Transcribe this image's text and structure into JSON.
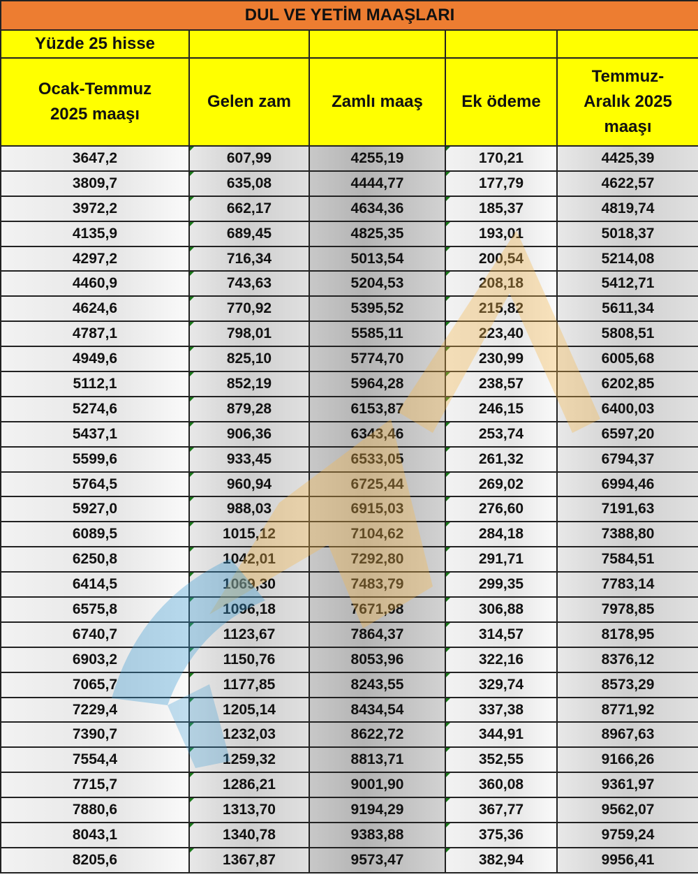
{
  "title": "DUL VE YETİM MAAŞLARI",
  "subtitle": "Yüzde 25 hisse",
  "headers": [
    "Ocak-Temmuz 2025 maaşı",
    "Gelen zam",
    "Zamlı maaş",
    "Ek ödeme",
    "Temmuz-Aralık 2025 maaşı"
  ],
  "colors": {
    "title_bg": "#ed7d31",
    "header_bg": "#ffff00"
  },
  "rows": [
    [
      "3647,2",
      "607,99",
      "4255,19",
      "170,21",
      "4425,39"
    ],
    [
      "3809,7",
      "635,08",
      "4444,77",
      "177,79",
      "4622,57"
    ],
    [
      "3972,2",
      "662,17",
      "4634,36",
      "185,37",
      "4819,74"
    ],
    [
      "4135,9",
      "689,45",
      "4825,35",
      "193,01",
      "5018,37"
    ],
    [
      "4297,2",
      "716,34",
      "5013,54",
      "200,54",
      "5214,08"
    ],
    [
      "4460,9",
      "743,63",
      "5204,53",
      "208,18",
      "5412,71"
    ],
    [
      "4624,6",
      "770,92",
      "5395,52",
      "215,82",
      "5611,34"
    ],
    [
      "4787,1",
      "798,01",
      "5585,11",
      "223,40",
      "5808,51"
    ],
    [
      "4949,6",
      "825,10",
      "5774,70",
      "230,99",
      "6005,68"
    ],
    [
      "5112,1",
      "852,19",
      "5964,28",
      "238,57",
      "6202,85"
    ],
    [
      "5274,6",
      "879,28",
      "6153,87",
      "246,15",
      "6400,03"
    ],
    [
      "5437,1",
      "906,36",
      "6343,46",
      "253,74",
      "6597,20"
    ],
    [
      "5599,6",
      "933,45",
      "6533,05",
      "261,32",
      "6794,37"
    ],
    [
      "5764,5",
      "960,94",
      "6725,44",
      "269,02",
      "6994,46"
    ],
    [
      "5927,0",
      "988,03",
      "6915,03",
      "276,60",
      "7191,63"
    ],
    [
      "6089,5",
      "1015,12",
      "7104,62",
      "284,18",
      "7388,80"
    ],
    [
      "6250,8",
      "1042,01",
      "7292,80",
      "291,71",
      "7584,51"
    ],
    [
      "6414,5",
      "1069,30",
      "7483,79",
      "299,35",
      "7783,14"
    ],
    [
      "6575,8",
      "1096,18",
      "7671,98",
      "306,88",
      "7978,85"
    ],
    [
      "6740,7",
      "1123,67",
      "7864,37",
      "314,57",
      "8178,95"
    ],
    [
      "6903,2",
      "1150,76",
      "8053,96",
      "322,16",
      "8376,12"
    ],
    [
      "7065,7",
      "1177,85",
      "8243,55",
      "329,74",
      "8573,29"
    ],
    [
      "7229,4",
      "1205,14",
      "8434,54",
      "337,38",
      "8771,92"
    ],
    [
      "7390,7",
      "1232,03",
      "8622,72",
      "344,91",
      "8967,63"
    ],
    [
      "7554,4",
      "1259,32",
      "8813,71",
      "352,55",
      "9166,26"
    ],
    [
      "7715,7",
      "1286,21",
      "9001,90",
      "360,08",
      "9361,97"
    ],
    [
      "7880,6",
      "1313,70",
      "9194,29",
      "367,77",
      "9562,07"
    ],
    [
      "8043,1",
      "1340,78",
      "9383,88",
      "375,36",
      "9759,24"
    ],
    [
      "8205,6",
      "1367,87",
      "9573,47",
      "382,94",
      "9956,41"
    ]
  ]
}
